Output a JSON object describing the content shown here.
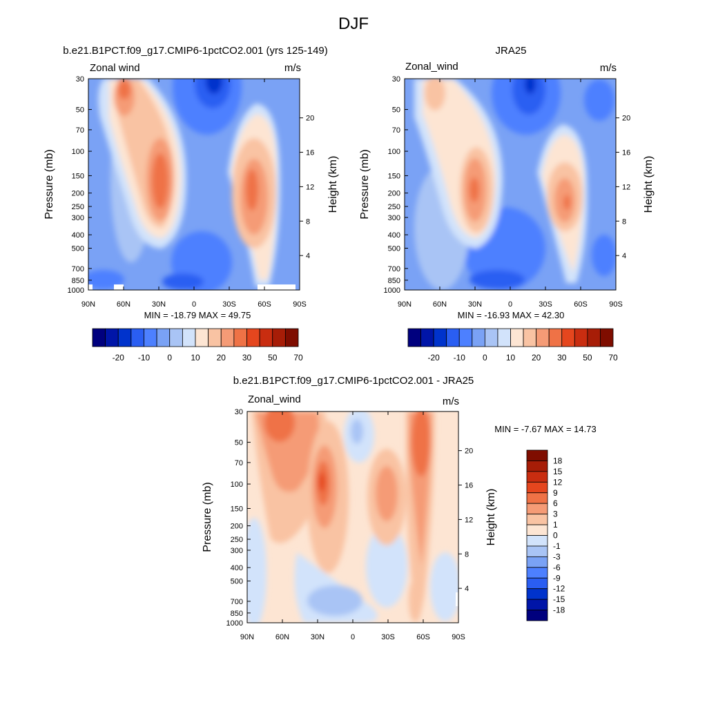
{
  "figure": {
    "title": "DJF"
  },
  "chart_data": [
    {
      "type": "contour",
      "panel": "model",
      "title": "b.e21.B1PCT.f09_g17.CMIP6-1pctCO2.001 (yrs 125-149)",
      "left_label": "Zonal wind",
      "units": "m/s",
      "ylabel": "Pressure (mb)",
      "y2label": "Height (km)",
      "x_ticks": [
        "90N",
        "60N",
        "30N",
        "0",
        "30S",
        "60S",
        "90S"
      ],
      "pressure_ticks": [
        "30",
        "50",
        "70",
        "100",
        "150",
        "200",
        "250",
        "300",
        "400",
        "500",
        "700",
        "850",
        "1000"
      ],
      "height_ticks": [
        "20",
        "16",
        "12",
        "8",
        "4"
      ],
      "min": -18.79,
      "max": 49.75,
      "min_max_text": "MIN = -18.79  MAX = 49.75",
      "colorbar_labels": [
        "-20",
        "-10",
        "0",
        "10",
        "20",
        "30",
        "50",
        "70"
      ],
      "colors": [
        "#00007e",
        "#0015a8",
        "#0033cc",
        "#2a5ef2",
        "#4d80ff",
        "#7aa2f5",
        "#a9c4f5",
        "#d2e3fb",
        "#fde5d3",
        "#f9c3a3",
        "#f59b76",
        "#ef7246",
        "#e5461e",
        "#c92d10",
        "#a71d07",
        "#7f0d00"
      ]
    },
    {
      "type": "contour",
      "panel": "obs",
      "title": "JRA25",
      "left_label": "Zonal_wind",
      "units": "m/s",
      "ylabel": "Pressure (mb)",
      "y2label": "Height (km)",
      "x_ticks": [
        "90N",
        "60N",
        "30N",
        "0",
        "30S",
        "60S",
        "90S"
      ],
      "pressure_ticks": [
        "30",
        "50",
        "70",
        "100",
        "150",
        "200",
        "250",
        "300",
        "400",
        "500",
        "700",
        "850",
        "1000"
      ],
      "height_ticks": [
        "20",
        "16",
        "12",
        "8",
        "4"
      ],
      "min": -16.93,
      "max": 42.3,
      "min_max_text": "MIN = -16.93  MAX = 42.30",
      "colorbar_labels": [
        "-20",
        "-10",
        "0",
        "10",
        "20",
        "30",
        "50",
        "70"
      ],
      "colors": [
        "#00007e",
        "#0015a8",
        "#0033cc",
        "#2a5ef2",
        "#4d80ff",
        "#7aa2f5",
        "#a9c4f5",
        "#d2e3fb",
        "#fde5d3",
        "#f9c3a3",
        "#f59b76",
        "#ef7246",
        "#e5461e",
        "#c92d10",
        "#a71d07",
        "#7f0d00"
      ]
    },
    {
      "type": "contour",
      "panel": "difference",
      "title": "b.e21.B1PCT.f09_g17.CMIP6-1pctCO2.001 - JRA25",
      "left_label": "Zonal_wind",
      "units": "m/s",
      "ylabel": "Pressure (mb)",
      "y2label": "Height (km)",
      "x_ticks": [
        "90N",
        "60N",
        "30N",
        "0",
        "30S",
        "60S",
        "90S"
      ],
      "pressure_ticks": [
        "30",
        "50",
        "70",
        "100",
        "150",
        "200",
        "250",
        "300",
        "400",
        "500",
        "700",
        "850",
        "1000"
      ],
      "height_ticks": [
        "20",
        "16",
        "12",
        "8",
        "4"
      ],
      "min": -7.67,
      "max": 14.73,
      "min_max_text": "MIN =  -7.67  MAX =  14.73",
      "colorbar_labels": [
        "18",
        "15",
        "12",
        "9",
        "6",
        "3",
        "1",
        "0",
        "-1",
        "-3",
        "-6",
        "-9",
        "-12",
        "-15",
        "-18"
      ],
      "colors": [
        "#7f0d00",
        "#a71d07",
        "#c92d10",
        "#e5461e",
        "#ef7246",
        "#f59b76",
        "#f9c3a3",
        "#fde5d3",
        "#d2e3fb",
        "#a9c4f5",
        "#7aa2f5",
        "#4d80ff",
        "#2a5ef2",
        "#0033cc",
        "#0015a8",
        "#00007e"
      ]
    }
  ]
}
